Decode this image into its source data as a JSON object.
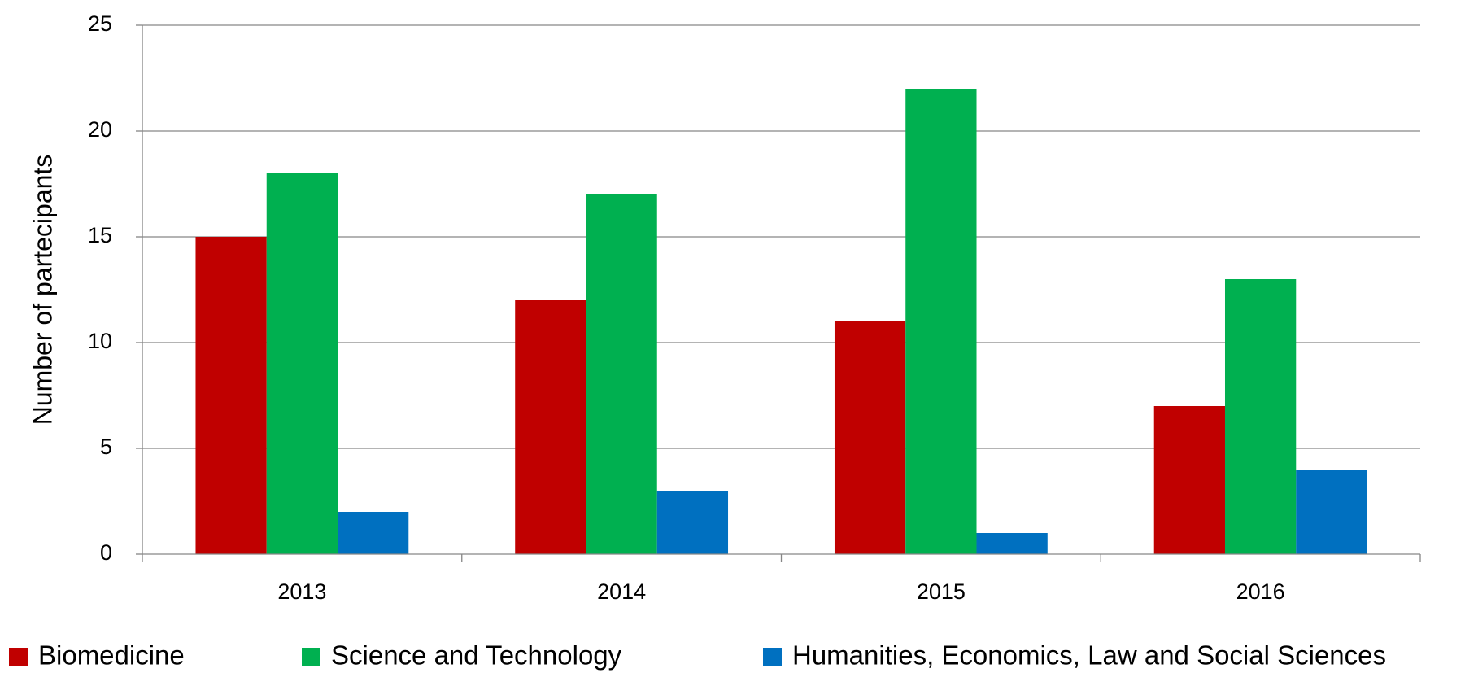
{
  "chart_data": {
    "type": "bar",
    "y_label": "Number of partecipants",
    "categories": [
      "2013",
      "2014",
      "2015",
      "2016"
    ],
    "series": [
      {
        "name": "Biomedicine",
        "color": "#c00000",
        "values": [
          15,
          12,
          11,
          7
        ]
      },
      {
        "name": "Science and Technology",
        "color": "#00b050",
        "values": [
          18,
          17,
          22,
          13
        ]
      },
      {
        "name": "Humanities, Economics, Law and Social Sciences",
        "color": "#0070c0",
        "values": [
          2,
          3,
          1,
          4
        ]
      }
    ],
    "ylim": [
      0,
      25
    ],
    "yticks": [
      0,
      5,
      10,
      15,
      20,
      25
    ],
    "grid": true,
    "legend": "bottom"
  }
}
